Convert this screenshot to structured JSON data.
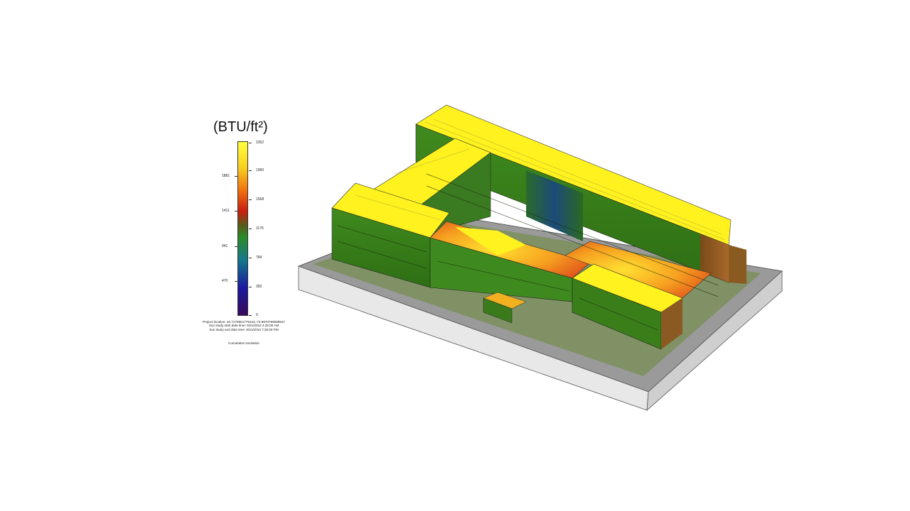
{
  "legend": {
    "title": "(BTU/ft²)",
    "scale_colors": [
      "#3a0a5a",
      "#1a1aa0",
      "#137a8a",
      "#2c8a2a",
      "#8a1a1a",
      "#e83010",
      "#f39010",
      "#f7e020",
      "#ffff40"
    ],
    "ticks_left": [
      "1881",
      "1411",
      "941",
      "470"
    ],
    "ticks_right": [
      "2352",
      "1960",
      "1568",
      "1176",
      "784",
      "392",
      "0"
    ]
  },
  "study_info": {
    "line1": "Project location: 40.7179601779123,-73.9870769099647",
    "line2": "Sun study start date time: 6/21/2010 4:25:00 AM",
    "line3": "Sun study end date time: 6/21/2010 7:25:00 PM"
  },
  "caption": "Cumulative Insolation"
}
